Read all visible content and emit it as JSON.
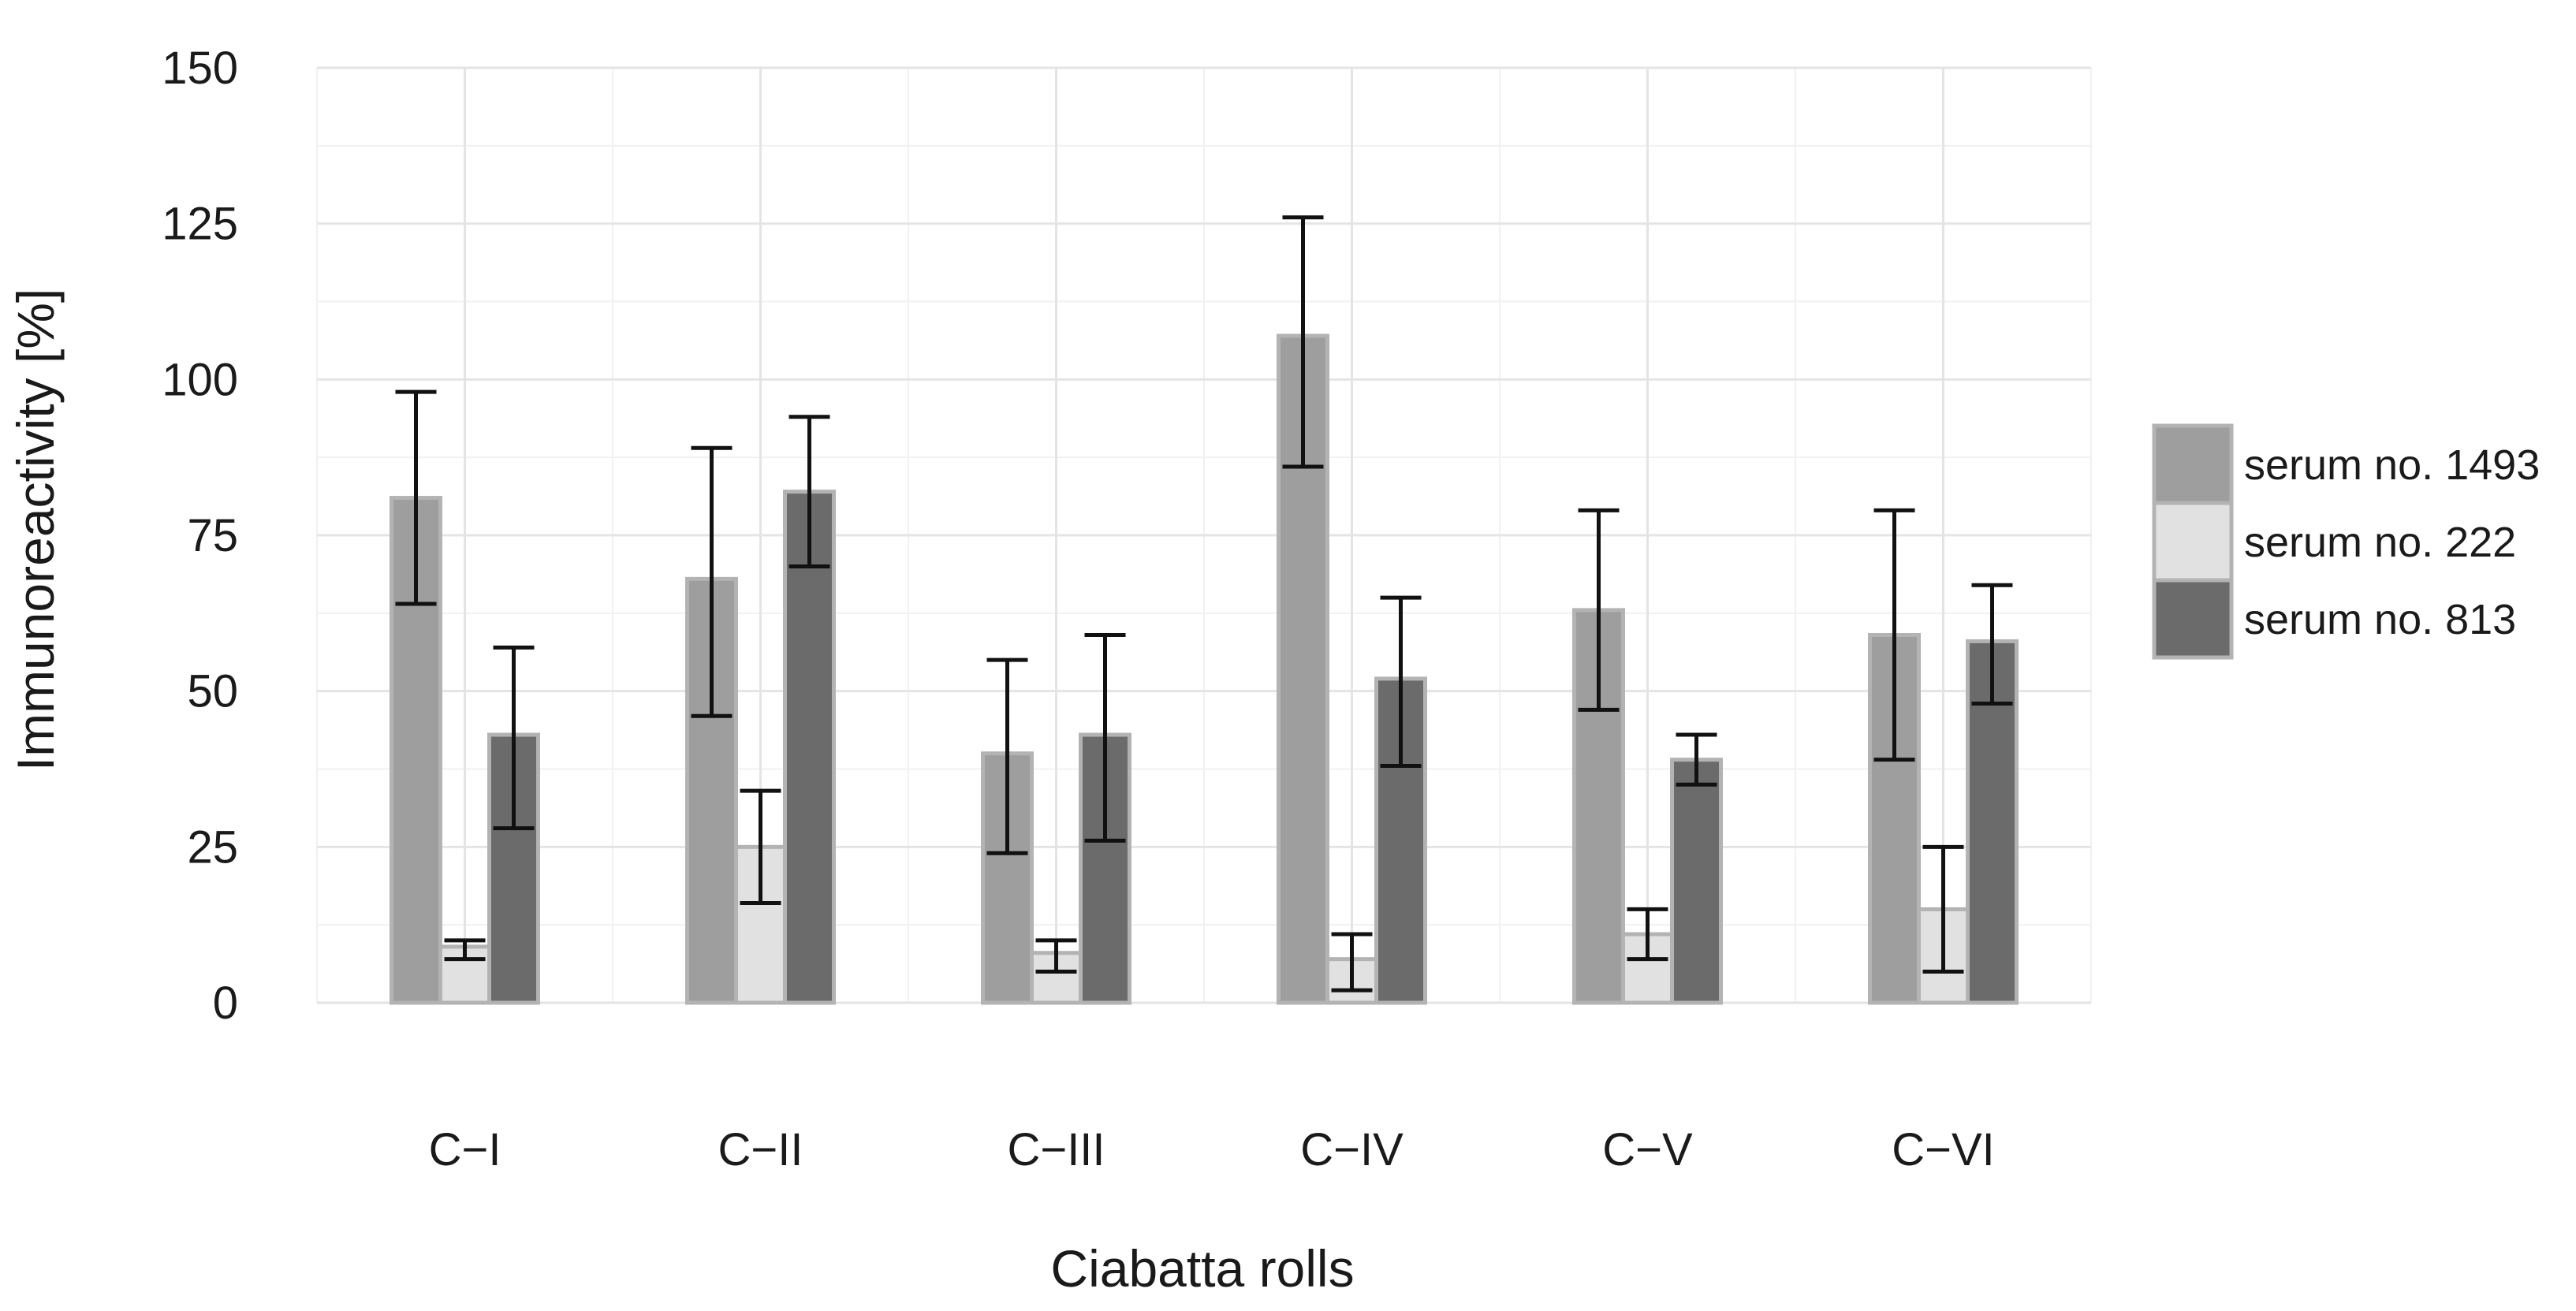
{
  "chart_data": {
    "type": "bar",
    "title": "",
    "xlabel": "Ciabatta rolls",
    "ylabel": "Immunoreactivity [%]",
    "ylim": [
      0,
      150
    ],
    "yticks": [
      "0",
      "25",
      "50",
      "75",
      "100",
      "125",
      "150"
    ],
    "ytick_values": [
      0,
      25,
      50,
      75,
      100,
      125,
      150
    ],
    "grid": true,
    "legend_position": "right",
    "categories": [
      "C−I",
      "C−II",
      "C−III",
      "C−IV",
      "C−V",
      "C−VI"
    ],
    "series": [
      {
        "name": "serum no. 1493",
        "color": "#9e9e9e",
        "values": [
          81,
          68,
          40,
          107,
          63,
          59
        ],
        "err_low": [
          64,
          46,
          24,
          86,
          47,
          39
        ],
        "err_high": [
          98,
          89,
          55,
          126,
          79,
          79
        ]
      },
      {
        "name": "serum no. 222",
        "color": "#e1e1e1",
        "values": [
          9,
          25,
          8,
          7,
          11,
          15
        ],
        "err_low": [
          7,
          16,
          5,
          2,
          7,
          5
        ],
        "err_high": [
          10,
          34,
          10,
          11,
          15,
          25
        ]
      },
      {
        "name": "serum no. 813",
        "color": "#6b6b6b",
        "values": [
          43,
          82,
          43,
          52,
          39,
          58
        ],
        "err_low": [
          28,
          70,
          26,
          38,
          35,
          48
        ],
        "err_high": [
          57,
          94,
          59,
          65,
          43,
          67
        ]
      }
    ]
  }
}
